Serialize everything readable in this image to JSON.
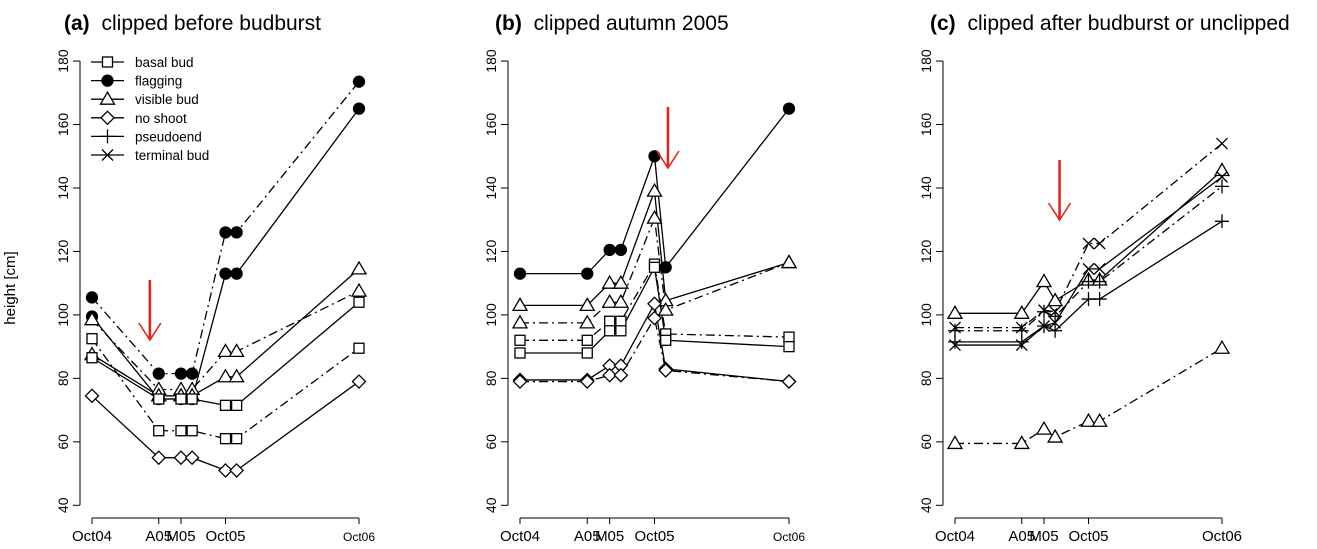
{
  "figure": {
    "ylabel": "height [cm]"
  },
  "chart_data": [
    {
      "type": "line",
      "title_letter": "(a)",
      "title_text": "clipped before budburst",
      "ylabel": "height [cm]",
      "ylim": [
        36,
        186
      ],
      "yticks": [
        40,
        60,
        80,
        100,
        120,
        140,
        160,
        180
      ],
      "xtick_labels": [
        "Oct04",
        "A05",
        "M05",
        "Oct05",
        "Oct06"
      ],
      "xtick_pos": [
        0,
        6,
        8,
        12,
        24
      ],
      "arrow_at": 5.2,
      "legend": {
        "placement": "top-left",
        "entries": [
          {
            "label": "basal bud",
            "marker": "square-open"
          },
          {
            "label": "flagging",
            "marker": "circle-filled"
          },
          {
            "label": "visible bud",
            "marker": "triangle-open"
          },
          {
            "label": "no shoot",
            "marker": "diamond-open"
          },
          {
            "label": "pseudoend",
            "marker": "plus"
          },
          {
            "label": "terminal bud",
            "marker": "cross"
          }
        ]
      },
      "series": [
        {
          "marker": "circle-filled",
          "dash": "dashdot",
          "x": [
            0,
            6,
            8,
            9,
            12,
            13,
            24
          ],
          "y": [
            105.5,
            81.5,
            81.5,
            81.5,
            126,
            126,
            173.5
          ]
        },
        {
          "marker": "circle-filled",
          "dash": "solid",
          "x": [
            0,
            6,
            8,
            9,
            12,
            13,
            24
          ],
          "y": [
            99.5,
            73.5,
            73.5,
            73.5,
            113,
            113,
            165
          ]
        },
        {
          "marker": "triangle-open",
          "dash": "dashdot",
          "x": [
            0,
            6,
            8,
            9,
            12,
            13,
            24
          ],
          "y": [
            98.5,
            76.5,
            76.5,
            76.5,
            88.5,
            88.5,
            107.5
          ]
        },
        {
          "marker": "triangle-open",
          "dash": "solid",
          "x": [
            0,
            6,
            8,
            9,
            12,
            13,
            24
          ],
          "y": [
            87.5,
            74.5,
            74.5,
            74.5,
            80.5,
            80.5,
            114.5
          ]
        },
        {
          "marker": "square-open",
          "dash": "solid",
          "x": [
            0,
            6,
            8,
            9,
            12,
            13,
            24
          ],
          "y": [
            86.5,
            73.5,
            73.5,
            73.5,
            71.5,
            71.5,
            104
          ]
        },
        {
          "marker": "square-open",
          "dash": "dashdot",
          "x": [
            0,
            6,
            8,
            9,
            12,
            13,
            24
          ],
          "y": [
            92.5,
            63.5,
            63.5,
            63.5,
            61,
            61,
            89.5
          ]
        },
        {
          "marker": "diamond-open",
          "dash": "solid",
          "x": [
            0,
            6,
            8,
            9,
            12,
            13,
            24
          ],
          "y": [
            74.5,
            55,
            55,
            55,
            51,
            51,
            79
          ]
        }
      ]
    },
    {
      "type": "line",
      "title_letter": "(b)",
      "title_text": "clipped autumn 2005",
      "ylim": [
        36,
        186
      ],
      "yticks": [
        40,
        60,
        80,
        100,
        120,
        140,
        160,
        180
      ],
      "xtick_labels": [
        "Oct04",
        "A05",
        "M05",
        "Oct05",
        "Oct06"
      ],
      "xtick_pos": [
        0,
        6,
        8,
        12,
        24
      ],
      "arrow_at": 13.2,
      "series": [
        {
          "marker": "circle-filled",
          "dash": "solid",
          "x": [
            0,
            6,
            8,
            9,
            12,
            13,
            24
          ],
          "y": [
            113,
            113,
            120.5,
            120.5,
            150,
            115,
            165
          ]
        },
        {
          "marker": "triangle-open",
          "dash": "solid",
          "x": [
            0,
            6,
            8,
            9,
            12,
            13,
            24
          ],
          "y": [
            103,
            103,
            110,
            110,
            139,
            104.5,
            116.5
          ]
        },
        {
          "marker": "triangle-open",
          "dash": "dashdot",
          "x": [
            0,
            6,
            8,
            9,
            12,
            13,
            24
          ],
          "y": [
            97.5,
            97.5,
            104,
            104,
            130.5,
            101.5,
            116.5
          ]
        },
        {
          "marker": "square-open",
          "dash": "dashdot",
          "x": [
            0,
            6,
            8,
            9,
            12,
            13,
            24
          ],
          "y": [
            92,
            92,
            98,
            98,
            116,
            94,
            93
          ]
        },
        {
          "marker": "square-open",
          "dash": "solid",
          "x": [
            0,
            6,
            8,
            9,
            12,
            13,
            24
          ],
          "y": [
            88,
            88,
            95,
            95,
            115,
            92,
            90
          ]
        },
        {
          "marker": "diamond-open",
          "dash": "solid",
          "x": [
            0,
            6,
            8,
            9,
            12,
            13,
            24
          ],
          "y": [
            79.5,
            79.5,
            84,
            84,
            103.5,
            83,
            79
          ]
        },
        {
          "marker": "diamond-open",
          "dash": "dashdot",
          "x": [
            0,
            6,
            8,
            9,
            12,
            13,
            24
          ],
          "y": [
            79,
            79,
            81,
            81,
            99,
            82.5,
            79
          ]
        }
      ]
    },
    {
      "type": "line",
      "title_letter": "(c)",
      "title_text": "clipped after budburst or unclipped",
      "ylim": [
        36,
        186
      ],
      "yticks": [
        40,
        60,
        80,
        100,
        120,
        140,
        160,
        180
      ],
      "xtick_labels": [
        "Oct04",
        "A05",
        "M05",
        "Oct05",
        "Oct06"
      ],
      "xtick_pos": [
        0,
        6,
        8,
        12,
        24
      ],
      "arrow_at": 9.4,
      "series": [
        {
          "marker": "triangle-open",
          "dash": "solid",
          "x": [
            0,
            6,
            8,
            9,
            12,
            13,
            24
          ],
          "y": [
            100.5,
            100.5,
            110.5,
            104.5,
            111,
            111,
            145.5
          ]
        },
        {
          "marker": "cross",
          "dash": "dashdot",
          "x": [
            0,
            6,
            8,
            9,
            12,
            13,
            24
          ],
          "y": [
            96,
            96,
            101.5,
            101,
            122.5,
            122.5,
            154
          ]
        },
        {
          "marker": "cross",
          "dash": "solid",
          "x": [
            0,
            6,
            8,
            9,
            12,
            13,
            24
          ],
          "y": [
            90.5,
            90.5,
            96.5,
            97.5,
            114.5,
            114.5,
            143.5
          ]
        },
        {
          "marker": "plus",
          "dash": "solid",
          "x": [
            0,
            6,
            8,
            9,
            12,
            13,
            24
          ],
          "y": [
            91.5,
            91.5,
            96.5,
            95,
            105,
            105,
            129.5
          ]
        },
        {
          "marker": "plus",
          "dash": "dashdot",
          "x": [
            0,
            6,
            8,
            9,
            12,
            13,
            24
          ],
          "y": [
            95,
            95,
            101,
            99.5,
            110.5,
            110.5,
            140.5
          ]
        },
        {
          "marker": "triangle-open",
          "dash": "dashdot",
          "x": [
            0,
            6,
            8,
            9,
            12,
            13,
            24
          ],
          "y": [
            59.5,
            59.5,
            64,
            61.5,
            66.5,
            66.5,
            89.5
          ]
        }
      ]
    }
  ],
  "colors": {
    "arrow": "#e0261e",
    "ink": "#000000"
  }
}
